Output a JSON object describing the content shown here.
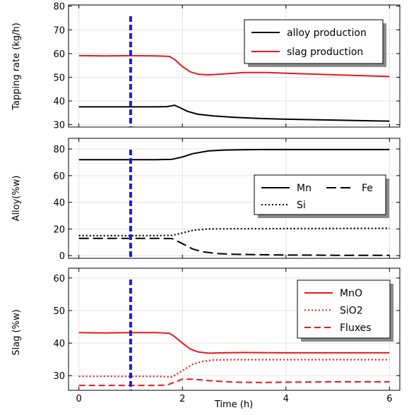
{
  "chart_data": [
    {
      "type": "line",
      "ylabel": "Tapping rate (kg/h)",
      "xlim": [
        -0.2,
        6.2
      ],
      "ylim": [
        29,
        80.5
      ],
      "yticks": [
        30,
        40,
        50,
        60,
        70,
        80
      ],
      "xticks": [
        0,
        2,
        4,
        6
      ],
      "grid": true,
      "legend_position": "top-right",
      "marker_x": 1.0,
      "marker_color": "#1f1fd6",
      "series": [
        {
          "name": "alloy production",
          "color": "#000000",
          "dash": "solid",
          "x": [
            0,
            0.5,
            1.0,
            1.5,
            1.7,
            1.8,
            1.85,
            1.95,
            2.1,
            2.3,
            2.6,
            3.0,
            3.5,
            4.0,
            5.0,
            6.0
          ],
          "y": [
            37.5,
            37.5,
            37.5,
            37.5,
            37.6,
            38.0,
            38.2,
            37.2,
            35.6,
            34.4,
            33.7,
            33.1,
            32.6,
            32.3,
            31.9,
            31.5
          ]
        },
        {
          "name": "slag production",
          "color": "#e41a1c",
          "dash": "solid",
          "x": [
            0,
            0.5,
            1.0,
            1.5,
            1.75,
            1.85,
            2.0,
            2.15,
            2.3,
            2.5,
            2.8,
            3.2,
            3.6,
            4.0,
            5.0,
            6.0
          ],
          "y": [
            59.1,
            59.0,
            59.1,
            59.0,
            58.8,
            57.5,
            54.5,
            52.3,
            51.3,
            51.0,
            51.4,
            52.0,
            52.0,
            51.7,
            51.0,
            50.3
          ]
        }
      ]
    },
    {
      "type": "line",
      "ylabel": "Alloy(%w)",
      "xlim": [
        -0.2,
        6.2
      ],
      "ylim": [
        -2,
        88
      ],
      "yticks": [
        0,
        20,
        40,
        60,
        80
      ],
      "xticks": [
        0,
        2,
        4,
        6
      ],
      "grid": true,
      "legend_position": "middle-right",
      "marker_x": 1.0,
      "marker_color": "#1f1fd6",
      "series": [
        {
          "name": "Mn",
          "color": "#000000",
          "dash": "solid",
          "x": [
            0,
            0.5,
            1.0,
            1.5,
            1.8,
            2.0,
            2.2,
            2.5,
            2.8,
            3.2,
            3.6,
            4.0,
            5.0,
            6.0
          ],
          "y": [
            72,
            72,
            72,
            72,
            72.3,
            74,
            76.5,
            78.5,
            79.2,
            79.5,
            79.6,
            79.6,
            79.6,
            79.6
          ]
        },
        {
          "name": "Fe",
          "color": "#000000",
          "dash": "long-dash",
          "x": [
            0,
            0.5,
            1.0,
            1.5,
            1.8,
            2.0,
            2.2,
            2.4,
            2.7,
            3.0,
            3.5,
            4.0,
            5.0,
            6.0
          ],
          "y": [
            13,
            13,
            13,
            13,
            12.8,
            9,
            5,
            2.8,
            1.5,
            1.0,
            0.7,
            0.5,
            0.3,
            0.2
          ]
        },
        {
          "name": "Si",
          "color": "#000000",
          "dash": "dotted",
          "x": [
            0,
            0.5,
            1.0,
            1.5,
            1.8,
            2.0,
            2.2,
            2.5,
            3.0,
            4.0,
            5.0,
            6.0
          ],
          "y": [
            15,
            15,
            15,
            15,
            15.2,
            17,
            19,
            20,
            20.2,
            20.3,
            20.4,
            20.5
          ]
        }
      ]
    },
    {
      "type": "line",
      "ylabel": "Slag (%w)",
      "xlabel": "Time (h)",
      "xlim": [
        -0.2,
        6.2
      ],
      "ylim": [
        25.5,
        63
      ],
      "yticks": [
        30,
        40,
        50,
        60
      ],
      "xticks": [
        0,
        2,
        4,
        6
      ],
      "xtick_labels": [
        "0",
        "2",
        "4",
        "6"
      ],
      "grid": true,
      "legend_position": "top-right",
      "marker_x": 1.0,
      "marker_color": "#1f1fd6",
      "series": [
        {
          "name": "MnO",
          "color": "#e41a1c",
          "dash": "solid",
          "x": [
            0,
            0.5,
            1.0,
            1.5,
            1.75,
            1.85,
            2.0,
            2.15,
            2.3,
            2.5,
            2.8,
            3.2,
            4.0,
            5.0,
            6.0
          ],
          "y": [
            43.2,
            43.1,
            43.2,
            43.2,
            43.0,
            42.0,
            40.0,
            38.2,
            37.3,
            36.9,
            37.0,
            37.1,
            37.0,
            37.0,
            37.0
          ]
        },
        {
          "name": "SiO2",
          "color": "#e41a1c",
          "dash": "dotted",
          "x": [
            0,
            0.5,
            1.0,
            1.5,
            1.8,
            2.0,
            2.2,
            2.4,
            2.6,
            3.0,
            4.0,
            5.0,
            6.0
          ],
          "y": [
            29.8,
            29.8,
            29.8,
            29.8,
            29.6,
            31.5,
            33.5,
            34.4,
            34.8,
            34.9,
            34.9,
            34.9,
            34.9
          ]
        },
        {
          "name": "Fluxes",
          "color": "#e41a1c",
          "dash": "dashed",
          "x": [
            0,
            0.5,
            1.0,
            1.5,
            1.7,
            1.85,
            2.0,
            2.2,
            2.5,
            3.0,
            3.5,
            4.0,
            5.0,
            6.0
          ],
          "y": [
            27.0,
            27.0,
            27.0,
            27.0,
            27.1,
            28.0,
            28.9,
            28.9,
            28.5,
            28.0,
            27.9,
            28.0,
            28.1,
            28.1
          ]
        }
      ]
    }
  ]
}
